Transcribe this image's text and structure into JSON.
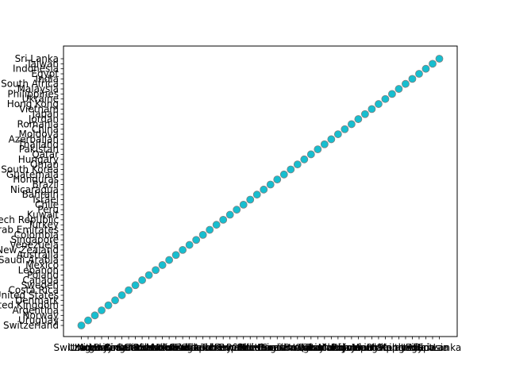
{
  "chart_data": {
    "type": "scatter",
    "title": "",
    "xlabel": "",
    "ylabel": "",
    "categories": [
      "Switzerland",
      "Uruguay",
      "Norway",
      "Argentina",
      "United Kingdom",
      "Denmark",
      "United States",
      "Costa Rica",
      "Sweden",
      "Canada",
      "Poland",
      "Lebanon",
      "Mexico",
      "Saudi Arabia",
      "Australia",
      "New Zealand",
      "Venezuela",
      "Singapore",
      "Colombia",
      "United Arab Emirates",
      "Turkey",
      "Czech Republic",
      "Kuwait",
      "Peru",
      "Chile",
      "Israel",
      "Bahrain",
      "Nicaragua",
      "Brazil",
      "Honduras",
      "Guatemala",
      "South Korea",
      "Oman",
      "Hungary",
      "Qatar",
      "Pakistan",
      "Thailand",
      "Azerbaijan",
      "Moldova",
      "China",
      "Romania",
      "Jordan",
      "Japan",
      "Vietnam",
      "Hong Kong",
      "Ukraine",
      "Philippines",
      "Malaysia",
      "South Africa",
      "India",
      "Egypt",
      "Indonesia",
      "Taiwan",
      "Sri Lanka"
    ],
    "x": [
      "Switzerland",
      "Uruguay",
      "Norway",
      "Argentina",
      "United Kingdom",
      "Denmark",
      "United States",
      "Costa Rica",
      "Sweden",
      "Canada",
      "Poland",
      "Lebanon",
      "Mexico",
      "Saudi Arabia",
      "Australia",
      "New Zealand",
      "Venezuela",
      "Singapore",
      "Colombia",
      "United Arab Emirates",
      "Turkey",
      "Czech Republic",
      "Kuwait",
      "Peru",
      "Chile",
      "Israel",
      "Bahrain",
      "Nicaragua",
      "Brazil",
      "Honduras",
      "Guatemala",
      "South Korea",
      "Oman",
      "Hungary",
      "Qatar",
      "Pakistan",
      "Thailand",
      "Azerbaijan",
      "Moldova",
      "China",
      "Romania",
      "Jordan",
      "Japan",
      "Vietnam",
      "Hong Kong",
      "Ukraine",
      "Philippines",
      "Malaysia",
      "South Africa",
      "India",
      "Egypt",
      "Indonesia",
      "Taiwan",
      "Sri Lanka"
    ],
    "y": [
      "Switzerland",
      "Uruguay",
      "Norway",
      "Argentina",
      "United Kingdom",
      "Denmark",
      "United States",
      "Costa Rica",
      "Sweden",
      "Canada",
      "Poland",
      "Lebanon",
      "Mexico",
      "Saudi Arabia",
      "Australia",
      "New Zealand",
      "Venezuela",
      "Singapore",
      "Colombia",
      "United Arab Emirates",
      "Turkey",
      "Czech Republic",
      "Kuwait",
      "Peru",
      "Chile",
      "Israel",
      "Bahrain",
      "Nicaragua",
      "Brazil",
      "Honduras",
      "Guatemala",
      "South Korea",
      "Oman",
      "Hungary",
      "Qatar",
      "Pakistan",
      "Thailand",
      "Azerbaijan",
      "Moldova",
      "China",
      "Romania",
      "Jordan",
      "Japan",
      "Vietnam",
      "Hong Kong",
      "Ukraine",
      "Philippines",
      "Malaysia",
      "South Africa",
      "India",
      "Egypt",
      "Indonesia",
      "Taiwan",
      "Sri Lanka"
    ],
    "marker_colors": [
      "#1f77b4",
      "#ff7f0e",
      "#2ca02c",
      "#d62728",
      "#9467bd",
      "#8c564b",
      "#e377c2",
      "#7f7f7f",
      "#bcbd22",
      "#17becf"
    ],
    "top_marker_color": "#17becf",
    "marker_edge_color": "#7f7f7f",
    "grid": false,
    "legend": "none"
  }
}
